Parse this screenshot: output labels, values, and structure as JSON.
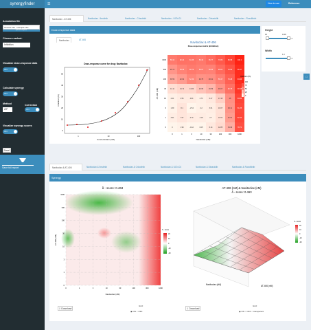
{
  "header": {
    "logo": "synergyfinder",
    "how_to_use": "How to use",
    "reference": "Reference"
  },
  "sidebar": {
    "annotation_label": "Annotation file",
    "choose_file": "Choose File",
    "file_name": "example.xlsx",
    "upload_status": "Upload complete",
    "readout_label": "Choose readout:",
    "readout_value": "Inhibition",
    "visualize_label": "Visualize dose-response data",
    "on": "ON",
    "calculate_label": "Calculate synergy",
    "method_label": "Method",
    "method_value": "ZIP",
    "correction_label": "Correction",
    "visualize_scores_label": "Visualize synergy scores",
    "save_button": "Save!",
    "save_full_report": "Save full report"
  },
  "top_tabs": [
    "Navitoclax - AT-406",
    "Navitoclax - Ibrutinib",
    "Navitoclax - Crizotinib",
    "Navitoclax - UCN-01",
    "Navitoclax - Dinaciclib",
    "Navitoclax - Ruxolitinib"
  ],
  "dose_box": {
    "title": "Dose-response data",
    "subtabs": [
      "Navitoclax",
      "AT-406"
    ]
  },
  "curve": {
    "title": "Dose-response curve for drug: Navitoclax",
    "xlabel": "Concentration (nM)",
    "ylabel": "Inhibition (%)",
    "xticks": [
      "1",
      "10",
      "100"
    ],
    "yticks": [
      "0",
      "10",
      "20",
      "30",
      "40",
      "50"
    ]
  },
  "matrix": {
    "title": "Navitoclax & AT-406",
    "subtitle": "Dose-response matrix (inhibition)",
    "xlabel": "Navitoclax (nM)",
    "ylabel": "AT-406 (nM)",
    "legend_title": "Inhibition (%)",
    "legend_ticks": [
      "100",
      "75",
      "50",
      "25",
      "0"
    ],
    "cols": [
      "0",
      "1",
      "3",
      "10",
      "30",
      "100",
      "300",
      "1000"
    ],
    "rows": [
      "1000",
      "300",
      "100",
      "30",
      "10",
      "3",
      "1",
      "0"
    ],
    "values": [
      [
        "58.44",
        "62.22",
        "61.88",
        "59.32",
        "65.77",
        "73.89",
        "84.98",
        "100.1"
      ],
      [
        "45.73",
        "54.29",
        "58.79",
        "56.07",
        "55.05",
        "65.81",
        "76.62",
        "95.47"
      ],
      [
        "36.59",
        "42.62",
        "52.49",
        "46.75",
        "48.41",
        "56.47",
        "70.28",
        "94.96"
      ],
      [
        "11.11",
        "14.72",
        "14.84",
        "23.95",
        "29.89",
        "46.07",
        "62.75",
        "90.68"
      ],
      [
        "2.21",
        "4.56",
        "4.84",
        "2.73",
        "6.27",
        "17.48",
        "48",
        "83.82"
      ],
      [
        "1.39",
        "8.1",
        "-2.54",
        "2.2",
        "3.61",
        "10.07",
        "46.11",
        "81.25"
      ],
      [
        "3.91",
        "7.57",
        "4.79",
        "4.18",
        "2.7",
        "10.62",
        "42.61",
        "82.54"
      ],
      [
        "0",
        "1.98",
        "-0.42",
        "0.05",
        "6.14",
        "12.85",
        "34.09",
        "78.71"
      ]
    ]
  },
  "right_panel": {
    "height_label": "Height",
    "height_min": "90",
    "height_max": "1300",
    "width_label": "Width",
    "width_value": "1.4"
  },
  "bottom_tabs": [
    "Navitoclax & AT-406",
    "Navitoclax & Ibrutinib",
    "Navitoclax & Crizotinib",
    "Navitoclax & UCN-01",
    "Navitoclax & Dinaciclib",
    "Navitoclax & Ruxolitinib"
  ],
  "synergy_box": {
    "title": "Synergy",
    "map2d": {
      "title": "δ - score: 0.463",
      "xlabel": "Navitoclax (nM)",
      "ylabel": "AT-406 (nM)",
      "legend_title": "δ - score",
      "legend_ticks": [
        "20",
        "10",
        "0",
        "-10",
        "-20"
      ],
      "xticks": [
        "0",
        "1",
        "3",
        "10",
        "30",
        "100",
        "300",
        "1000"
      ],
      "yticks": [
        "1000",
        "300",
        "100",
        "30",
        "10",
        "3",
        "1",
        "0"
      ]
    },
    "map3d": {
      "title": "AT-406 (nM) & Navitoclax (nM)",
      "subtitle": "δ - score: 0.463",
      "xlabel": "Navitoclax (nM)",
      "ylabel": "AT-406 (nM)",
      "legend_title": "δ - score",
      "legend_ticks": [
        "20",
        "10",
        "0",
        "-10",
        "-20"
      ]
    },
    "download": "Download",
    "grid_label": "Grid:",
    "on": "ON",
    "off": "OFF",
    "transparent": "transparent"
  }
}
